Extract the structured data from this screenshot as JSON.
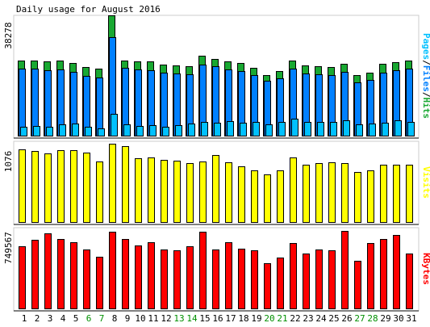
{
  "title": "Daily usage for August 2016",
  "colors": {
    "background": "#ffffff",
    "frame": "#cccccc",
    "axis_text": "#000000",
    "hits": "#19a832",
    "files": "#0080ff",
    "pages": "#00c0ff",
    "visits": "#ffff00",
    "kbytes": "#ff0000",
    "weekend": "#008f00",
    "outline": "#000000"
  },
  "chart_data": [
    {
      "type": "bar",
      "panel": "hits-files-pages",
      "title": "Daily usage for August 2016",
      "ymax_label": "38278",
      "ylim": [
        0,
        38278
      ],
      "legend": [
        "Pages",
        "/",
        "Files",
        "/",
        "Hits"
      ],
      "legend_placement": "right (vertical)",
      "categories": [
        "1",
        "2",
        "3",
        "4",
        "5",
        "6",
        "7",
        "8",
        "9",
        "10",
        "11",
        "12",
        "13",
        "14",
        "15",
        "16",
        "17",
        "18",
        "19",
        "20",
        "21",
        "22",
        "23",
        "24",
        "25",
        "26",
        "27",
        "28",
        "29",
        "30",
        "31"
      ],
      "weekend_days": [
        "6",
        "7",
        "13",
        "14",
        "20",
        "21",
        "27",
        "28"
      ],
      "series": [
        {
          "name": "Hits",
          "values": [
            23900,
            23900,
            23600,
            24000,
            23100,
            21800,
            21200,
            38278,
            24000,
            23600,
            23600,
            22500,
            22400,
            22100,
            25400,
            24500,
            23600,
            23100,
            21600,
            19300,
            20600,
            23900,
            22400,
            22000,
            21800,
            22800,
            19200,
            20000,
            22800,
            23400,
            23900
          ]
        },
        {
          "name": "Files",
          "values": [
            21300,
            21300,
            20800,
            21000,
            20400,
            19100,
            18500,
            31300,
            21500,
            21000,
            20800,
            20000,
            19800,
            19600,
            22700,
            22200,
            21000,
            20600,
            19200,
            17400,
            18200,
            21200,
            19800,
            19500,
            19300,
            20200,
            16900,
            17700,
            20100,
            20900,
            21300
          ]
        },
        {
          "name": "Pages",
          "values": [
            2700,
            3000,
            2900,
            3500,
            3800,
            2800,
            2200,
            6900,
            3600,
            3200,
            3300,
            2800,
            3300,
            3800,
            4300,
            4100,
            4500,
            4200,
            4300,
            3700,
            4400,
            5400,
            4300,
            4300,
            4400,
            5000,
            3700,
            3800,
            4100,
            5000,
            4300
          ]
        }
      ]
    },
    {
      "type": "bar",
      "panel": "visits",
      "ymax_label": "1076",
      "ylim": [
        0,
        1076
      ],
      "legend": [
        "Visits"
      ],
      "legend_placement": "right (vertical)",
      "categories": [
        "1",
        "2",
        "3",
        "4",
        "5",
        "6",
        "7",
        "8",
        "9",
        "10",
        "11",
        "12",
        "13",
        "14",
        "15",
        "16",
        "17",
        "18",
        "19",
        "20",
        "21",
        "22",
        "23",
        "24",
        "25",
        "26",
        "27",
        "28",
        "29",
        "30",
        "31"
      ],
      "series": [
        {
          "name": "Visits",
          "values": [
            1000,
            980,
            940,
            990,
            990,
            950,
            830,
            1076,
            1040,
            880,
            890,
            850,
            840,
            810,
            830,
            920,
            820,
            760,
            710,
            660,
            710,
            890,
            790,
            810,
            820,
            810,
            690,
            710,
            790,
            790,
            790
          ]
        }
      ]
    },
    {
      "type": "bar",
      "panel": "kbytes",
      "ymax_label": "749567",
      "ylim": [
        0,
        749567
      ],
      "legend": [
        "KBytes"
      ],
      "legend_placement": "right (vertical)",
      "categories": [
        "1",
        "2",
        "3",
        "4",
        "5",
        "6",
        "7",
        "8",
        "9",
        "10",
        "11",
        "12",
        "13",
        "14",
        "15",
        "16",
        "17",
        "18",
        "19",
        "20",
        "21",
        "22",
        "23",
        "24",
        "25",
        "26",
        "27",
        "28",
        "29",
        "30",
        "31"
      ],
      "series": [
        {
          "name": "KBytes",
          "values": [
            600000,
            660000,
            730000,
            670000,
            640000,
            570000,
            500000,
            740000,
            670000,
            610000,
            640000,
            570000,
            560000,
            600000,
            740000,
            570000,
            640000,
            580000,
            560000,
            440000,
            490000,
            630000,
            530000,
            570000,
            560000,
            749567,
            460000,
            630000,
            670000,
            710000,
            530000
          ]
        }
      ]
    }
  ]
}
